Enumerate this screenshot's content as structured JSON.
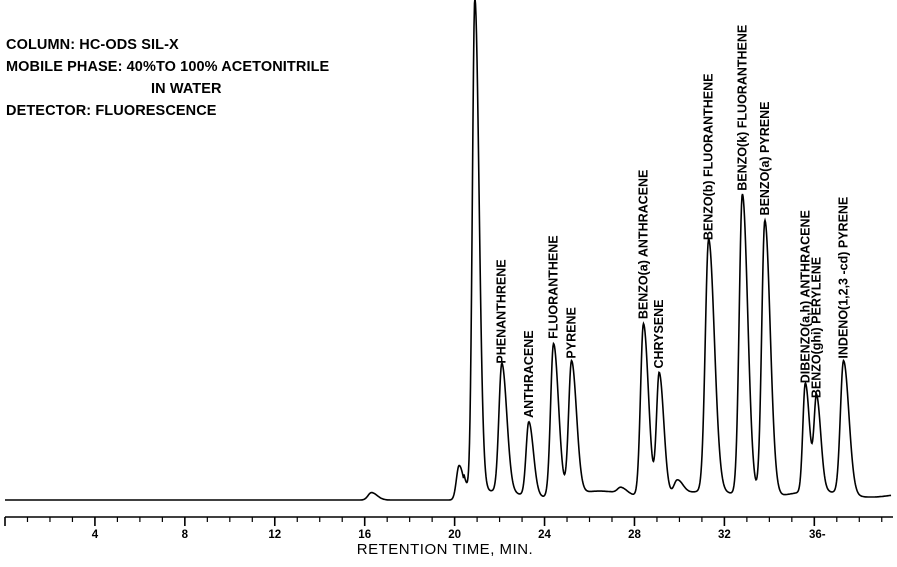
{
  "conditions": {
    "column": "COLUMN: HC-ODS SIL-X",
    "mobile_phase_line1": "MOBILE PHASE: 40%TO 100% ACETONITRILE",
    "mobile_phase_line2": "IN WATER",
    "detector": "DETECTOR: FLUORESCENCE"
  },
  "chart_data": {
    "type": "line",
    "title": "",
    "xlabel": "RETENTION TIME, MIN.",
    "ylabel": "",
    "xlim": [
      0,
      39.5
    ],
    "ylim": [
      0,
      100
    ],
    "x_ticks": [
      {
        "value": 4,
        "label": "4"
      },
      {
        "value": 8,
        "label": "8"
      },
      {
        "value": 12,
        "label": "12"
      },
      {
        "value": 16,
        "label": "16"
      },
      {
        "value": 20,
        "label": "20"
      },
      {
        "value": 24,
        "label": "24"
      },
      {
        "value": 28,
        "label": "28"
      },
      {
        "value": 32,
        "label": "32"
      },
      {
        "value": 36,
        "label": "36-"
      }
    ],
    "peaks": [
      {
        "rt": 16.3,
        "height": 1.5,
        "width": 0.15,
        "label": ""
      },
      {
        "rt": 20.2,
        "height": 7,
        "width": 0.12,
        "label": ""
      },
      {
        "rt": 20.9,
        "height": 100,
        "width": 0.11,
        "label": ""
      },
      {
        "rt": 22.1,
        "height": 26,
        "width": 0.13,
        "label": "PHENANTHRENE"
      },
      {
        "rt": 23.3,
        "height": 15,
        "width": 0.12,
        "label": "ANTHRACENE"
      },
      {
        "rt": 24.4,
        "height": 31,
        "width": 0.13,
        "label": "FLUORANTHENE"
      },
      {
        "rt": 25.2,
        "height": 27,
        "width": 0.13,
        "label": "PYRENE"
      },
      {
        "rt": 27.4,
        "height": 1.2,
        "width": 0.15,
        "label": ""
      },
      {
        "rt": 28.4,
        "height": 35,
        "width": 0.13,
        "label": "BENZO(a) ANTHRACENE"
      },
      {
        "rt": 29.1,
        "height": 25,
        "width": 0.12,
        "label": "CHRYSENE"
      },
      {
        "rt": 29.9,
        "height": 3,
        "width": 0.15,
        "label": ""
      },
      {
        "rt": 31.3,
        "height": 51,
        "width": 0.15,
        "label": "BENZO(b) FLUORANTHENE"
      },
      {
        "rt": 32.8,
        "height": 61,
        "width": 0.14,
        "label": "BENZO(k) FLUORANTHENE"
      },
      {
        "rt": 33.8,
        "height": 56,
        "width": 0.14,
        "label": "BENZO(a) PYRENE"
      },
      {
        "rt": 35.6,
        "height": 22,
        "width": 0.11,
        "label": "DIBENZO(a,h) ANTHRACENE"
      },
      {
        "rt": 36.1,
        "height": 19,
        "width": 0.11,
        "label": "BENZO(ghi) PERYLENE"
      },
      {
        "rt": 37.3,
        "height": 27,
        "width": 0.14,
        "label": "INDENO(1,2,3 -cd) PYRENE"
      }
    ]
  }
}
